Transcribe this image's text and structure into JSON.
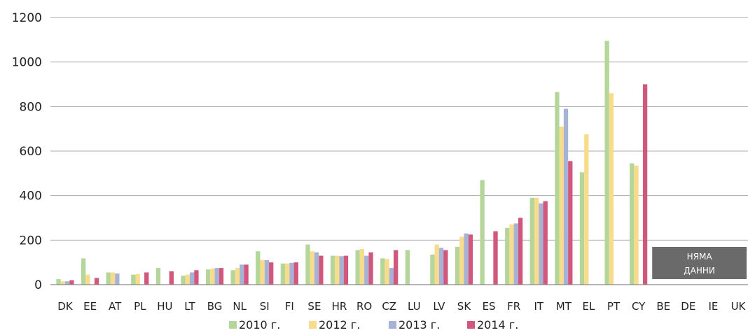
{
  "chart_data": {
    "type": "bar",
    "title": "",
    "xlabel": "",
    "ylabel": "",
    "ylim": [
      0,
      1200
    ],
    "yticks": [
      "0",
      "200",
      "400",
      "600",
      "800",
      "1000",
      "1200"
    ],
    "grid": true,
    "legend_position": "bottom",
    "categories": [
      "DK",
      "EE",
      "AT",
      "PL",
      "HU",
      "LT",
      "BG",
      "NL",
      "SI",
      "FI",
      "SE",
      "HR",
      "RO",
      "CZ",
      "LU",
      "LV",
      "SK",
      "ES",
      "FR",
      "IT",
      "MT",
      "EL",
      "PT",
      "CY",
      "BE",
      "DE",
      "IE",
      "UK"
    ],
    "series": [
      {
        "name": "2010 г.",
        "color": "#b5d69a",
        "values": [
          25,
          118,
          55,
          45,
          75,
          40,
          68,
          65,
          150,
          95,
          180,
          130,
          155,
          118,
          155,
          135,
          170,
          470,
          255,
          390,
          865,
          505,
          1095,
          545,
          null,
          null,
          null,
          null
        ]
      },
      {
        "name": "2012 г.",
        "color": "#f6dc8b",
        "values": [
          15,
          45,
          55,
          48,
          null,
          45,
          72,
          75,
          110,
          95,
          150,
          130,
          160,
          115,
          null,
          180,
          215,
          null,
          270,
          390,
          710,
          675,
          860,
          535,
          null,
          null,
          null,
          null
        ]
      },
      {
        "name": "2013 г.",
        "color": "#a6b3d6",
        "values": [
          15,
          null,
          50,
          null,
          null,
          55,
          75,
          90,
          110,
          98,
          145,
          128,
          130,
          75,
          null,
          165,
          230,
          null,
          275,
          365,
          790,
          null,
          null,
          null,
          null,
          null,
          null,
          null
        ]
      },
      {
        "name": "2014 г.",
        "color": "#d2577c",
        "values": [
          20,
          30,
          null,
          55,
          60,
          65,
          75,
          90,
          100,
          100,
          130,
          130,
          145,
          155,
          null,
          155,
          225,
          240,
          300,
          375,
          555,
          null,
          null,
          900,
          null,
          null,
          null,
          null
        ]
      }
    ],
    "no_data_label": [
      "НЯМА",
      "ДАННИ"
    ],
    "no_data_categories": [
      "BE",
      "DE",
      "IE",
      "UK"
    ],
    "no_data_color": "#6a6a6a"
  }
}
